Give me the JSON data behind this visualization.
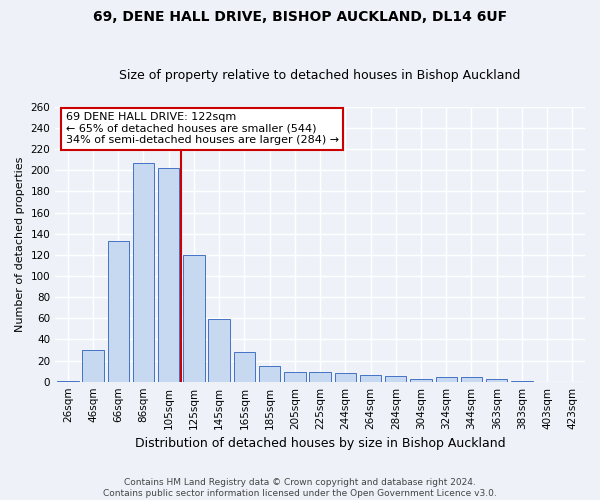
{
  "title1": "69, DENE HALL DRIVE, BISHOP AUCKLAND, DL14 6UF",
  "title2": "Size of property relative to detached houses in Bishop Auckland",
  "xlabel": "Distribution of detached houses by size in Bishop Auckland",
  "ylabel": "Number of detached properties",
  "categories": [
    "26sqm",
    "46sqm",
    "66sqm",
    "86sqm",
    "105sqm",
    "125sqm",
    "145sqm",
    "165sqm",
    "185sqm",
    "205sqm",
    "225sqm",
    "244sqm",
    "264sqm",
    "284sqm",
    "304sqm",
    "324sqm",
    "344sqm",
    "363sqm",
    "383sqm",
    "403sqm",
    "423sqm"
  ],
  "values": [
    1,
    30,
    133,
    207,
    202,
    120,
    59,
    28,
    15,
    9,
    9,
    8,
    6,
    5,
    3,
    4,
    4,
    3,
    1,
    0,
    0
  ],
  "bar_color": "#c6d9f0",
  "bar_edge_color": "#4472c4",
  "vline_color": "#cc0000",
  "annotation_title": "69 DENE HALL DRIVE: 122sqm",
  "annotation_line1": "← 65% of detached houses are smaller (544)",
  "annotation_line2": "34% of semi-detached houses are larger (284) →",
  "annotation_box_color": "#ffffff",
  "annotation_box_edge": "#cc0000",
  "ylim": [
    0,
    260
  ],
  "yticks": [
    0,
    20,
    40,
    60,
    80,
    100,
    120,
    140,
    160,
    180,
    200,
    220,
    240,
    260
  ],
  "footer1": "Contains HM Land Registry data © Crown copyright and database right 2024.",
  "footer2": "Contains public sector information licensed under the Open Government Licence v3.0.",
  "bg_color": "#eef2f8",
  "grid_color": "#ffffff",
  "title1_fontsize": 10,
  "title2_fontsize": 9,
  "annotation_fontsize": 8,
  "ylabel_fontsize": 8,
  "xlabel_fontsize": 9,
  "tick_fontsize": 7.5,
  "footer_fontsize": 6.5
}
